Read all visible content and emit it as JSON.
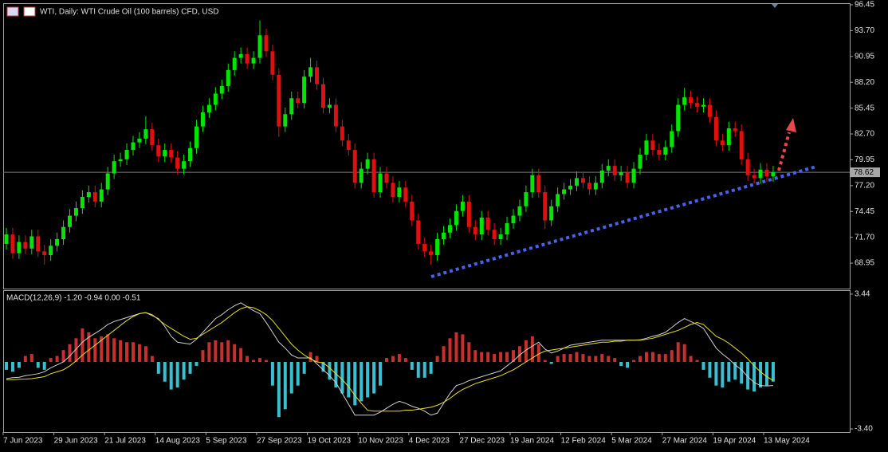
{
  "chart_data": [
    {
      "type": "candlestick",
      "title": "WTI, Daily:  WTI Crude Oil (100 barrels) CFD, USD",
      "categories": [
        "7 Jun 2023",
        null,
        null,
        null,
        null,
        null,
        null,
        null,
        "29 Jun 2023",
        null,
        null,
        null,
        null,
        null,
        null,
        null,
        "21 Jul 2023",
        null,
        null,
        null,
        null,
        null,
        null,
        null,
        "14 Aug 2023",
        null,
        null,
        null,
        null,
        null,
        null,
        null,
        "5 Sep 2023",
        null,
        null,
        null,
        null,
        null,
        null,
        null,
        "27 Sep 2023",
        null,
        null,
        null,
        null,
        null,
        null,
        null,
        "19 Oct 2023",
        null,
        null,
        null,
        null,
        null,
        null,
        null,
        "10 Nov 2023",
        null,
        null,
        null,
        null,
        null,
        null,
        null,
        "4 Dec 2023",
        null,
        null,
        null,
        null,
        null,
        null,
        null,
        "27 Dec 2023",
        null,
        null,
        null,
        null,
        null,
        null,
        null,
        "19 Jan 2024",
        null,
        null,
        null,
        null,
        null,
        null,
        null,
        "12 Feb 2024",
        null,
        null,
        null,
        null,
        null,
        null,
        null,
        "5 Mar 2024",
        null,
        null,
        null,
        null,
        null,
        null,
        null,
        "27 Mar 2024",
        null,
        null,
        null,
        null,
        null,
        null,
        null,
        "19 Apr 2024",
        null,
        null,
        null,
        null,
        null,
        null,
        null,
        "13 May 2024",
        null
      ],
      "open": [
        71.0,
        72.0,
        70.0,
        71.2,
        70.5,
        71.8,
        70.2,
        69.8,
        70.8,
        71.5,
        72.8,
        74.0,
        74.8,
        76.0,
        76.5,
        75.5,
        76.8,
        78.5,
        79.8,
        80.0,
        81.0,
        81.8,
        82.2,
        83.2,
        81.5,
        80.3,
        81.0,
        80.2,
        79.0,
        79.8,
        81.2,
        83.5,
        85.0,
        85.8,
        87.0,
        87.8,
        89.5,
        90.8,
        91.2,
        90.2,
        90.8,
        93.2,
        91.5,
        89.0,
        83.5,
        84.8,
        86.5,
        86.0,
        88.8,
        89.8,
        88.0,
        85.5,
        85.8,
        83.5,
        82.0,
        81.0,
        77.5,
        79.0,
        80.0,
        76.5,
        78.5,
        77.5,
        76.0,
        77.0,
        75.5,
        73.5,
        71.0,
        70.2,
        69.8,
        71.5,
        72.2,
        73.0,
        74.5,
        75.5,
        72.8,
        72.0,
        73.8,
        72.5,
        71.5,
        72.0,
        73.2,
        74.0,
        75.0,
        76.5,
        78.3,
        76.5,
        73.5,
        75.0,
        76.3,
        76.8,
        77.2,
        78.0,
        77.5,
        76.8,
        77.5,
        78.8,
        79.3,
        78.3,
        78.6,
        77.5,
        79.0,
        80.5,
        82.0,
        81.0,
        80.5,
        81.3,
        83.0,
        85.8,
        86.6,
        86.0,
        85.6,
        85.8,
        84.5,
        82.0,
        81.5,
        83.3,
        83.0,
        80.0,
        78.3,
        78.0,
        78.9,
        78.2
      ],
      "high": [
        72.7,
        72.7,
        71.9,
        71.9,
        72.5,
        72.5,
        70.9,
        71.5,
        72.2,
        73.5,
        74.7,
        75.5,
        76.7,
        77.2,
        77.2,
        77.5,
        79.2,
        80.5,
        80.7,
        81.7,
        82.5,
        82.9,
        84.6,
        83.9,
        82.2,
        81.7,
        81.7,
        80.9,
        80.5,
        81.9,
        84.2,
        85.7,
        86.5,
        87.7,
        88.5,
        90.2,
        91.5,
        91.9,
        91.9,
        91.5,
        94.8,
        93.9,
        92.2,
        89.7,
        85.5,
        87.2,
        87.2,
        89.5,
        90.8,
        90.5,
        88.7,
        86.5,
        86.5,
        84.2,
        82.7,
        81.7,
        79.7,
        80.7,
        80.7,
        79.2,
        79.2,
        78.2,
        77.7,
        77.7,
        76.2,
        74.2,
        71.7,
        70.9,
        72.2,
        72.9,
        73.7,
        75.2,
        76.2,
        76.2,
        73.5,
        74.5,
        74.5,
        73.2,
        72.7,
        73.9,
        74.7,
        75.7,
        77.2,
        79.0,
        79.0,
        77.2,
        75.7,
        77.0,
        77.5,
        77.9,
        78.7,
        78.7,
        78.2,
        78.2,
        79.5,
        80.0,
        80.0,
        79.3,
        79.3,
        79.7,
        81.2,
        82.7,
        82.7,
        81.7,
        82.0,
        83.7,
        86.5,
        87.6,
        87.3,
        86.7,
        86.5,
        86.5,
        85.2,
        82.7,
        84.0,
        84.0,
        83.7,
        80.7,
        79.0,
        79.6,
        79.6,
        79.3
      ],
      "low": [
        70.4,
        69.4,
        69.4,
        69.9,
        69.9,
        69.6,
        68.8,
        69.2,
        70.2,
        70.9,
        72.2,
        73.4,
        74.2,
        75.4,
        74.9,
        74.9,
        76.2,
        77.9,
        79.2,
        79.4,
        80.4,
        81.2,
        81.6,
        80.9,
        79.7,
        79.7,
        79.6,
        78.4,
        78.4,
        79.2,
        80.6,
        82.9,
        84.4,
        85.2,
        86.4,
        87.2,
        88.9,
        90.2,
        89.6,
        89.6,
        90.2,
        90.9,
        88.4,
        82.4,
        82.9,
        84.2,
        85.4,
        85.4,
        88.2,
        87.4,
        84.9,
        84.9,
        82.9,
        81.4,
        80.4,
        76.9,
        76.9,
        78.4,
        75.9,
        75.9,
        76.9,
        75.4,
        75.4,
        74.9,
        72.9,
        70.4,
        69.6,
        68.8,
        69.2,
        70.9,
        71.6,
        72.4,
        73.9,
        72.2,
        71.4,
        71.4,
        71.9,
        70.9,
        70.9,
        71.4,
        72.6,
        73.4,
        74.4,
        75.9,
        75.9,
        72.6,
        72.9,
        74.4,
        75.7,
        76.2,
        76.6,
        76.9,
        76.2,
        76.2,
        76.9,
        78.2,
        77.7,
        77.7,
        76.9,
        76.9,
        78.4,
        79.9,
        80.4,
        79.9,
        79.9,
        80.7,
        82.4,
        85.2,
        85.4,
        85.0,
        85.0,
        83.9,
        81.4,
        80.9,
        80.9,
        82.4,
        79.4,
        77.7,
        77.4,
        77.4,
        77.6,
        77.6
      ],
      "close": [
        72.0,
        70.0,
        71.2,
        70.5,
        71.8,
        70.2,
        69.8,
        70.8,
        71.5,
        72.8,
        74.0,
        74.8,
        76.0,
        76.5,
        75.5,
        76.8,
        78.5,
        79.8,
        80.0,
        81.0,
        81.8,
        82.2,
        83.2,
        81.5,
        80.3,
        81.0,
        80.2,
        79.0,
        79.8,
        81.2,
        83.5,
        85.0,
        85.8,
        87.0,
        87.8,
        89.5,
        90.8,
        91.2,
        90.2,
        90.8,
        93.2,
        91.5,
        89.0,
        83.5,
        84.8,
        86.5,
        86.0,
        88.8,
        89.8,
        88.0,
        85.5,
        85.8,
        83.5,
        82.0,
        81.0,
        77.5,
        79.0,
        80.0,
        76.5,
        78.5,
        77.5,
        76.0,
        77.0,
        75.5,
        73.5,
        71.0,
        70.2,
        69.8,
        71.5,
        72.2,
        73.0,
        74.5,
        75.5,
        72.8,
        72.0,
        73.8,
        72.5,
        71.5,
        72.0,
        73.2,
        74.0,
        75.0,
        76.5,
        78.3,
        76.5,
        73.5,
        75.0,
        76.3,
        76.8,
        77.2,
        78.0,
        77.5,
        76.8,
        77.5,
        78.8,
        79.3,
        78.3,
        78.6,
        77.5,
        79.0,
        80.5,
        82.0,
        81.0,
        80.5,
        81.3,
        83.0,
        85.8,
        86.6,
        86.0,
        85.6,
        85.8,
        84.5,
        82.0,
        81.5,
        83.3,
        83.0,
        80.0,
        78.3,
        78.0,
        78.9,
        78.2,
        78.62
      ],
      "up_color": "#00e600",
      "down_color": "#e01010",
      "current_price": 78.62,
      "ylim": [
        66.24,
        96.62
      ],
      "yticks": [
        96.45,
        {
          "value": 93.7,
          "label": "93.70"
        },
        90.95,
        {
          "value": 88.2,
          "label": "88.20"
        },
        85.45,
        {
          "value": 82.7,
          "label": "82.70"
        },
        79.95,
        {
          "value": 77.2,
          "label": "77.20"
        },
        74.45,
        {
          "value": 71.7,
          "label": "71.70"
        },
        68.95
      ]
    },
    {
      "type": "macd",
      "label": "MACD(12,26,9) -1.20 -0.94 0.00 -0.51",
      "histogram": {
        "positive_color": "#c83030",
        "negative_color": "#38c0d0",
        "values": [
          -0.4,
          -0.5,
          -0.3,
          0.3,
          0.4,
          -0.3,
          -0.4,
          0.2,
          0.3,
          0.6,
          0.9,
          1.2,
          1.7,
          1.5,
          1.2,
          1.3,
          1.4,
          1.2,
          1.1,
          1.0,
          1.0,
          0.9,
          0.8,
          0.3,
          -0.6,
          -1.0,
          -1.4,
          -1.3,
          -0.9,
          -0.6,
          -0.2,
          0.6,
          1.0,
          1.1,
          1.0,
          1.1,
          0.9,
          0.7,
          0.3,
          0.1,
          0.2,
          0.1,
          -1.2,
          -2.8,
          -2.4,
          -1.6,
          -1.2,
          -0.6,
          0.5,
          0.3,
          -0.5,
          -0.9,
          -1.3,
          -1.6,
          -1.8,
          -2.2,
          -2.0,
          -1.8,
          -1.6,
          -1.2,
          0.2,
          0.3,
          0.4,
          0.2,
          -0.4,
          -0.8,
          -0.8,
          -0.6,
          0.3,
          0.8,
          1.2,
          1.5,
          1.4,
          1.0,
          0.6,
          0.5,
          0.5,
          0.4,
          0.5,
          0.5,
          0.6,
          0.8,
          1.1,
          1.3,
          0.9,
          0.1,
          -0.1,
          0.3,
          0.4,
          0.4,
          0.5,
          0.4,
          0.3,
          0.3,
          0.4,
          0.3,
          0.2,
          -0.2,
          -0.3,
          0.1,
          0.3,
          0.5,
          0.5,
          0.4,
          0.4,
          0.6,
          1.0,
          0.9,
          0.3,
          0.1,
          -0.4,
          -0.8,
          -1.2,
          -1.3,
          -1.0,
          -0.9,
          -1.1,
          -1.4,
          -1.5,
          -1.3,
          -1.2,
          -1.0
        ]
      },
      "series": [
        {
          "color": "#d0d0d0",
          "values": [
            -0.85,
            -0.8,
            -0.78,
            -0.7,
            -0.65,
            -0.6,
            -0.5,
            -0.3,
            -0.15,
            0.0,
            0.3,
            0.65,
            1.0,
            1.25,
            1.45,
            1.65,
            1.9,
            2.05,
            2.15,
            2.25,
            2.35,
            2.45,
            2.5,
            2.35,
            2.2,
            1.8,
            1.3,
            1.0,
            0.95,
            0.9,
            1.15,
            1.5,
            1.85,
            2.2,
            2.4,
            2.65,
            2.85,
            3.0,
            2.8,
            2.6,
            2.45,
            2.0,
            1.5,
            1.0,
            0.7,
            0.35,
            0.2,
            0.2,
            0.2,
            -0.1,
            -0.4,
            -0.7,
            -1.05,
            -1.6,
            -2.15,
            -2.7,
            -2.7,
            -2.7,
            -2.7,
            -2.55,
            -2.35,
            -2.15,
            -2.0,
            -2.1,
            -2.25,
            -2.35,
            -2.5,
            -2.7,
            -2.6,
            -2.1,
            -1.6,
            -1.2,
            -1.1,
            -0.95,
            -0.85,
            -0.75,
            -0.65,
            -0.55,
            -0.45,
            -0.2,
            0.05,
            0.35,
            0.6,
            0.8,
            1.0,
            0.65,
            0.45,
            0.55,
            0.7,
            0.85,
            0.9,
            0.95,
            1.0,
            1.05,
            1.1,
            1.1,
            1.1,
            1.1,
            1.1,
            1.1,
            1.12,
            1.2,
            1.3,
            1.38,
            1.5,
            1.75,
            2.0,
            2.2,
            2.05,
            1.9,
            1.7,
            1.2,
            0.7,
            0.4,
            0.15,
            -0.15,
            -0.4,
            -0.75,
            -1.05,
            -1.2,
            -1.22,
            -1.2
          ]
        },
        {
          "color": "#e8e020",
          "values": [
            -0.9,
            -0.9,
            -0.88,
            -0.87,
            -0.85,
            -0.8,
            -0.75,
            -0.6,
            -0.5,
            -0.4,
            -0.2,
            0.05,
            0.35,
            0.6,
            0.85,
            1.1,
            1.35,
            1.6,
            1.85,
            2.1,
            2.3,
            2.45,
            2.5,
            2.4,
            2.15,
            1.9,
            1.7,
            1.5,
            1.3,
            1.15,
            1.2,
            1.4,
            1.6,
            1.8,
            2.0,
            2.25,
            2.5,
            2.7,
            2.8,
            2.75,
            2.6,
            2.4,
            2.1,
            1.7,
            1.3,
            0.9,
            0.6,
            0.35,
            0.15,
            0.0,
            -0.05,
            -0.3,
            -0.6,
            -0.9,
            -1.25,
            -1.7,
            -2.1,
            -2.45,
            -2.5,
            -2.5,
            -2.5,
            -2.5,
            -2.5,
            -2.45,
            -2.45,
            -2.4,
            -2.35,
            -2.3,
            -2.2,
            -2.05,
            -1.85,
            -1.6,
            -1.4,
            -1.25,
            -1.1,
            -1.0,
            -0.9,
            -0.8,
            -0.7,
            -0.55,
            -0.4,
            -0.2,
            0.0,
            0.2,
            0.4,
            0.55,
            0.6,
            0.65,
            0.7,
            0.75,
            0.8,
            0.85,
            0.9,
            0.95,
            1.0,
            1.0,
            1.05,
            1.05,
            1.1,
            1.1,
            1.1,
            1.15,
            1.2,
            1.3,
            1.4,
            1.5,
            1.6,
            1.75,
            1.9,
            2.0,
            1.9,
            1.6,
            1.3,
            1.15,
            0.95,
            0.7,
            0.45,
            0.15,
            -0.2,
            -0.5,
            -0.75,
            -0.94
          ]
        }
      ],
      "ylim": [
        -3.56,
        3.64
      ],
      "yticks": [
        3.44,
        {
          "value": -3.4,
          "label": "-3.40"
        }
      ]
    }
  ]
}
